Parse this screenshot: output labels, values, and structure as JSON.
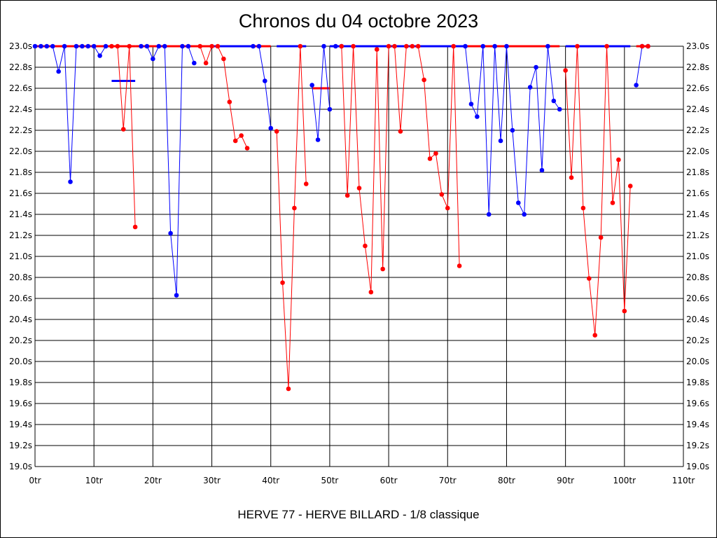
{
  "chart_data": {
    "type": "line",
    "title": "Chronos du 04 octobre 2023",
    "subtitle": "HERVE 77 - HERVE BILLARD - 1/8 classique",
    "xlim": [
      0,
      110
    ],
    "ylim": [
      19.0,
      23.0
    ],
    "x_ticks": [
      0,
      10,
      20,
      30,
      40,
      50,
      60,
      70,
      80,
      90,
      100,
      110
    ],
    "x_tick_labels": [
      "0tr",
      "10tr",
      "20tr",
      "30tr",
      "40tr",
      "50tr",
      "60tr",
      "70tr",
      "80tr",
      "90tr",
      "100tr",
      "110tr"
    ],
    "y_ticks": [
      19.0,
      19.2,
      19.4,
      19.6,
      19.8,
      20.0,
      20.2,
      20.4,
      20.6,
      20.8,
      21.0,
      21.2,
      21.4,
      21.6,
      21.8,
      22.0,
      22.2,
      22.4,
      22.6,
      22.8,
      23.0
    ],
    "y_tick_labels": [
      "19.0s",
      "19.2s",
      "19.4s",
      "19.6s",
      "19.8s",
      "20.0s",
      "20.2s",
      "20.4s",
      "20.6s",
      "20.8s",
      "21.0s",
      "21.2s",
      "21.4s",
      "21.6s",
      "21.8s",
      "22.0s",
      "22.2s",
      "22.4s",
      "22.6s",
      "22.8s",
      "23.0s"
    ],
    "grid": true,
    "series": [
      {
        "color": "#0000ff",
        "segments": [
          [
            [
              0,
              23.0
            ],
            [
              1,
              23.0
            ],
            [
              2,
              23.0
            ],
            [
              3,
              23.0
            ],
            [
              4,
              22.76
            ],
            [
              5,
              23.0
            ],
            [
              6,
              21.71
            ],
            [
              7,
              23.0
            ],
            [
              8,
              23.0
            ],
            [
              9,
              23.0
            ],
            [
              10,
              23.0
            ],
            [
              11,
              22.91
            ],
            [
              12,
              23.0
            ]
          ],
          [
            [
              18,
              23.0
            ],
            [
              19,
              23.0
            ],
            [
              20,
              22.88
            ],
            [
              21,
              23.0
            ],
            [
              22,
              23.0
            ],
            [
              23,
              21.22
            ],
            [
              24,
              20.63
            ],
            [
              25,
              23.0
            ],
            [
              26,
              23.0
            ],
            [
              27,
              22.84
            ]
          ],
          [
            [
              37,
              23.0
            ],
            [
              38,
              23.0
            ],
            [
              39,
              22.67
            ],
            [
              40,
              22.22
            ]
          ],
          [
            [
              47,
              22.63
            ],
            [
              48,
              22.11
            ],
            [
              49,
              23.0
            ],
            [
              50,
              22.4
            ]
          ],
          [
            [
              51,
              23.0
            ],
            [
              52,
              23.0
            ]
          ],
          [
            [
              73,
              23.0
            ],
            [
              74,
              22.45
            ],
            [
              75,
              22.33
            ],
            [
              76,
              23.0
            ],
            [
              77,
              21.4
            ],
            [
              78,
              23.0
            ],
            [
              79,
              22.1
            ],
            [
              80,
              23.0
            ],
            [
              81,
              22.2
            ],
            [
              82,
              21.51
            ],
            [
              83,
              21.4
            ],
            [
              84,
              22.61
            ],
            [
              85,
              22.8
            ],
            [
              86,
              21.82
            ],
            [
              87,
              23.0
            ],
            [
              88,
              22.48
            ],
            [
              89,
              22.4
            ]
          ],
          [
            [
              102,
              22.63
            ],
            [
              103,
              23.0
            ],
            [
              104,
              23.0
            ]
          ]
        ]
      },
      {
        "color": "#ff0000",
        "segments": [
          [
            [
              13,
              23.0
            ],
            [
              14,
              23.0
            ],
            [
              15,
              22.21
            ],
            [
              16,
              23.0
            ],
            [
              17,
              21.28
            ]
          ],
          [
            [
              28,
              23.0
            ],
            [
              29,
              22.84
            ],
            [
              30,
              23.0
            ],
            [
              31,
              23.0
            ],
            [
              32,
              22.88
            ],
            [
              33,
              22.47
            ],
            [
              34,
              22.1
            ],
            [
              35,
              22.15
            ],
            [
              36,
              22.03
            ]
          ],
          [
            [
              41,
              22.19
            ],
            [
              42,
              20.75
            ],
            [
              43,
              19.74
            ],
            [
              44,
              21.46
            ],
            [
              45,
              23.0
            ],
            [
              46,
              21.69
            ]
          ],
          [
            [
              52,
              23.0
            ],
            [
              53,
              21.58
            ],
            [
              54,
              23.0
            ],
            [
              55,
              21.65
            ],
            [
              56,
              21.1
            ],
            [
              57,
              20.66
            ],
            [
              58,
              22.97
            ],
            [
              59,
              20.88
            ],
            [
              60,
              23.0
            ],
            [
              61,
              23.0
            ],
            [
              62,
              22.19
            ],
            [
              63,
              23.0
            ],
            [
              64,
              23.0
            ],
            [
              65,
              23.0
            ],
            [
              66,
              22.68
            ],
            [
              67,
              21.93
            ],
            [
              68,
              21.98
            ],
            [
              69,
              21.59
            ],
            [
              70,
              21.46
            ],
            [
              71,
              23.0
            ],
            [
              72,
              20.91
            ]
          ],
          [
            [
              90,
              22.77
            ],
            [
              91,
              21.75
            ],
            [
              92,
              23.0
            ],
            [
              93,
              21.46
            ],
            [
              94,
              20.79
            ],
            [
              95,
              20.25
            ],
            [
              96,
              21.18
            ],
            [
              97,
              23.0
            ],
            [
              98,
              21.51
            ],
            [
              99,
              21.92
            ],
            [
              100,
              20.48
            ],
            [
              101,
              21.67
            ]
          ],
          [
            [
              103,
              23.0
            ],
            [
              104,
              23.0
            ]
          ]
        ]
      }
    ],
    "reference_lines": [
      {
        "color": "#ff0000",
        "y": 23.0,
        "x0": 0,
        "x1": 17
      },
      {
        "color": "#ff0000",
        "y": 23.0,
        "x0": 17,
        "x1": 30
      },
      {
        "color": "#0000ff",
        "y": 23.0,
        "x0": 30,
        "x1": 37
      },
      {
        "color": "#ff0000",
        "y": 23.0,
        "x0": 37,
        "x1": 40
      },
      {
        "color": "#0000ff",
        "y": 23.0,
        "x0": 41,
        "x1": 46
      },
      {
        "color": "#0000ff",
        "y": 23.0,
        "x0": 50,
        "x1": 73
      },
      {
        "color": "#ff0000",
        "y": 23.0,
        "x0": 73,
        "x1": 89
      },
      {
        "color": "#0000ff",
        "y": 23.0,
        "x0": 90,
        "x1": 101
      },
      {
        "color": "#ff0000",
        "y": 23.0,
        "x0": 102,
        "x1": 104
      },
      {
        "color": "#0000ff",
        "y": 22.67,
        "x0": 13,
        "x1": 17
      },
      {
        "color": "#ff0000",
        "y": 22.6,
        "x0": 47,
        "x1": 50
      }
    ]
  }
}
